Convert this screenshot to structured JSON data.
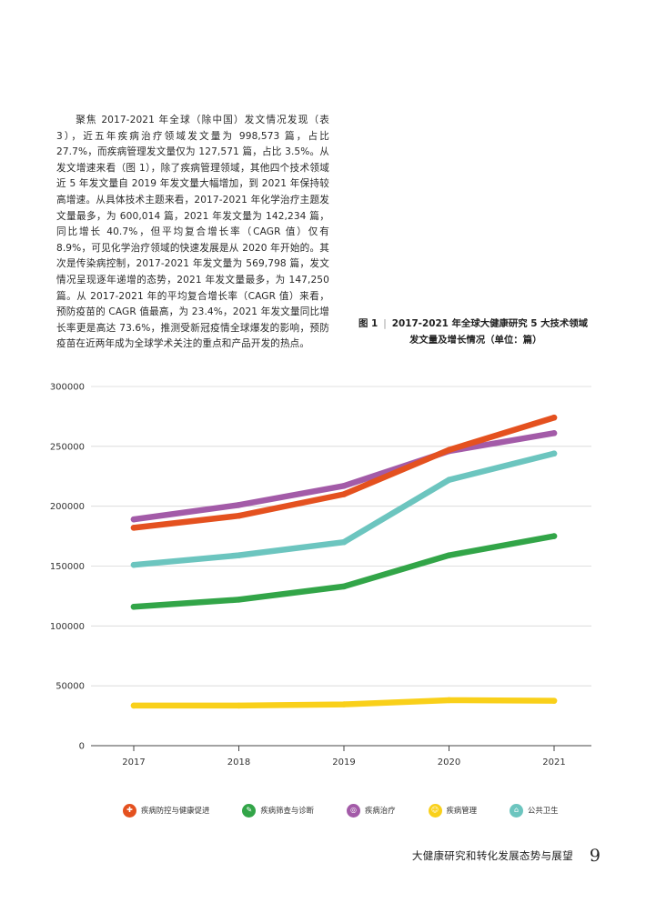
{
  "body_text": "聚焦 2017-2021 年全球（除中国）发文情况发现（表 3），近五年疾病治疗领域发文量为 998,573 篇，占比 27.7%，而疾病管理发文量仅为 127,571 篇，占比 3.5%。从发文增速来看（图 1），除了疾病管理领域，其他四个技术领域近 5 年发文量自 2019 年发文量大幅增加，到 2021 年保持较高增速。从具体技术主题来看，2017-2021 年化学治疗主题发文量最多，为 600,014 篇，2021 年发文量为 142,234 篇，同比增长 40.7%，但平均复合增长率（CAGR 值）仅有 8.9%，可见化学治疗领域的快速发展是从 2020 年开始的。其次是传染病控制，2017-2021 年发文量为 569,798 篇，发文情况呈现逐年递增的态势，2021 年发文量最多，为 147,250 篇。从 2017-2021 年的平均复合增长率（CAGR 值）来看，预防疫苗的 CAGR 值最高，为 23.4%，2021 年发文量同比增长率更是高达 73.6%，推测受新冠疫情全球爆发的影响，预防疫苗在近两年成为全球学术关注的重点和产品开发的热点。",
  "figure": {
    "label": "图 1",
    "separator": "|",
    "title_line1": "2017-2021 年全球大健康研究 5 大技术领域",
    "title_line2": "发文量及增长情况（单位：篇）"
  },
  "chart_data": {
    "type": "line",
    "title": "",
    "xlabel": "",
    "ylabel": "",
    "x": [
      "2017",
      "2018",
      "2019",
      "2020",
      "2021"
    ],
    "y_ticks": [
      "0",
      "50000",
      "100000",
      "150000",
      "200000",
      "250000",
      "300000"
    ],
    "ylim": [
      0,
      300000
    ],
    "grid": true,
    "legend_position": "bottom",
    "series": [
      {
        "name": "疾病防控与健康促进",
        "color": "#E4511F",
        "icon": "shield-icon",
        "values": [
          182000,
          192000,
          210000,
          247000,
          274000
        ]
      },
      {
        "name": "疾病筛查与诊断",
        "color": "#32A548",
        "icon": "stethoscope-icon",
        "values": [
          116000,
          122000,
          133000,
          159000,
          175000
        ]
      },
      {
        "name": "疾病治疗",
        "color": "#A35BA8",
        "icon": "pill-icon",
        "values": [
          189000,
          201000,
          217000,
          246000,
          261000
        ]
      },
      {
        "name": "疾病管理",
        "color": "#F9D01A",
        "icon": "smile-icon",
        "values": [
          33500,
          33500,
          34500,
          38000,
          37500
        ]
      },
      {
        "name": "公共卫生",
        "color": "#6CC5BF",
        "icon": "building-icon",
        "values": [
          151000,
          159000,
          170000,
          222000,
          244000
        ]
      }
    ]
  },
  "legend_glyphs": [
    "✚",
    "✎",
    "◎",
    "☺",
    "⌂"
  ],
  "footer": {
    "title": "大健康研究和转化发展态势与展望",
    "page": "9"
  }
}
